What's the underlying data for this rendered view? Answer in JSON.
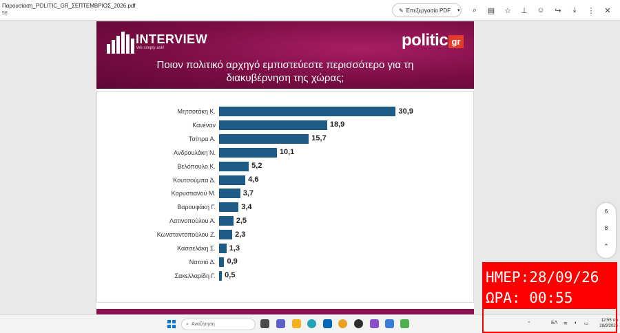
{
  "viewer": {
    "file_name": "Παρουσίαση_POLITIC_GR_ΣΕΠΤΕΜΒΡΙΟΣ_2026.pdf",
    "page_indicator": "58",
    "edit_button_label": "Επεξεργασία PDF",
    "icons": [
      "pencil-icon",
      "search-icon",
      "comment-icon",
      "star-icon",
      "pin-icon",
      "emoji-icon",
      "share-icon",
      "download-icon",
      "more-icon",
      "close-icon"
    ]
  },
  "slide": {
    "interview_logo": "INTERVIEW",
    "interview_tagline": "We simply ask!",
    "politic_logo": "politic",
    "politic_suffix": "gr",
    "title_line1": "Ποιον πολιτικό αρχηγό εμπιστεύεστε περισσότερο για τη",
    "title_line2": "διακυβέρνηση της χώρας;"
  },
  "chart_data": {
    "type": "bar",
    "orientation": "horizontal",
    "categories": [
      "Μητσοτάκη Κ.",
      "Κανέναν",
      "Τσίπρα Α.",
      "Ανδρουλάκη Ν.",
      "Βελόπουλο Κ.",
      "Κουτσούμπα Δ.",
      "Καρυστιανού Μ.",
      "Βαρουφάκη Γ.",
      "Λατινοπούλου Α.",
      "Κωνσταντοπούλου Ζ.",
      "Κασσελάκη Σ.",
      "Νατσιό Δ.",
      "Σακελλαρίδη Γ."
    ],
    "values": [
      30.9,
      18.9,
      15.7,
      10.1,
      5.2,
      4.6,
      3.7,
      3.4,
      2.5,
      2.3,
      1.3,
      0.9,
      0.5
    ],
    "value_labels": [
      "30,9",
      "18,9",
      "15,7",
      "10,1",
      "5,2",
      "4,6",
      "3,7",
      "3,4",
      "2,5",
      "2,3",
      "1,3",
      "0,9",
      "0,5"
    ],
    "bar_color": "#1e5b86",
    "grid": false,
    "legend": "none"
  },
  "zoom": {
    "page_top": "6",
    "page_bottom": "8",
    "up_icon": "chevron-up-icon",
    "zoom_icon": "zoom-icon"
  },
  "stamp": {
    "date_line": "ΗΜΕΡ:28/09/26",
    "time_line": "ΩΡΑ: 00:55"
  },
  "taskbar": {
    "search_placeholder": "Αναζήτηση",
    "language": "ΕΛ",
    "time": "12:55 πμ",
    "date": "28/9/2026"
  }
}
